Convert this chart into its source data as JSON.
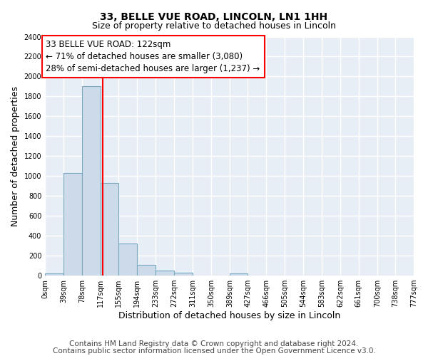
{
  "title_main": "33, BELLE VUE ROAD, LINCOLN, LN1 1HH",
  "title_sub": "Size of property relative to detached houses in Lincoln",
  "xlabel": "Distribution of detached houses by size in Lincoln",
  "ylabel": "Number of detached properties",
  "bar_edges": [
    0,
    39,
    78,
    117,
    155,
    194,
    233,
    272,
    311,
    350,
    389,
    427,
    466,
    505,
    544,
    583,
    622,
    661,
    700,
    738,
    777
  ],
  "bar_heights": [
    25,
    1030,
    1900,
    930,
    320,
    105,
    50,
    30,
    0,
    0,
    20,
    0,
    0,
    0,
    0,
    0,
    0,
    0,
    0,
    0
  ],
  "bar_color": "#ccdaea",
  "bar_edge_color": "#7aaabf",
  "property_line_x": 122,
  "property_line_color": "red",
  "annotation_line1": "33 BELLE VUE ROAD: 122sqm",
  "annotation_line2": "← 71% of detached houses are smaller (3,080)",
  "annotation_line3": "28% of semi-detached houses are larger (1,237) →",
  "annotation_box_color": "white",
  "annotation_box_edge_color": "red",
  "ylim": [
    0,
    2400
  ],
  "yticks": [
    0,
    200,
    400,
    600,
    800,
    1000,
    1200,
    1400,
    1600,
    1800,
    2000,
    2200,
    2400
  ],
  "xtick_labels": [
    "0sqm",
    "39sqm",
    "78sqm",
    "117sqm",
    "155sqm",
    "194sqm",
    "233sqm",
    "272sqm",
    "311sqm",
    "350sqm",
    "389sqm",
    "427sqm",
    "466sqm",
    "505sqm",
    "544sqm",
    "583sqm",
    "622sqm",
    "661sqm",
    "700sqm",
    "738sqm",
    "777sqm"
  ],
  "footer_line1": "Contains HM Land Registry data © Crown copyright and database right 2024.",
  "footer_line2": "Contains public sector information licensed under the Open Government Licence v3.0.",
  "background_color": "#ffffff",
  "plot_background_color": "#e8eef5",
  "grid_color": "#ffffff",
  "title_fontsize": 10,
  "subtitle_fontsize": 9,
  "axis_label_fontsize": 9,
  "tick_fontsize": 7,
  "annotation_fontsize": 8.5,
  "footer_fontsize": 7.5
}
